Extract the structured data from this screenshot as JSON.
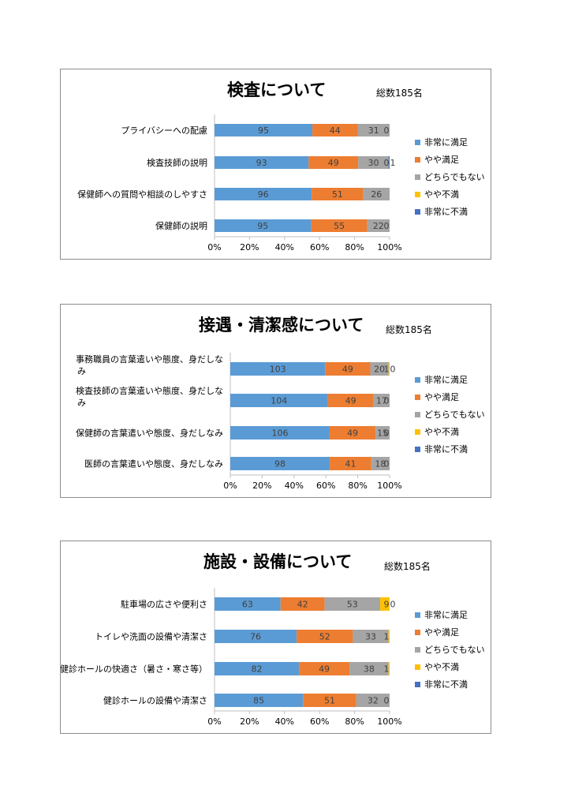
{
  "colors": {
    "very_satisfied": "#5b9bd5",
    "satisfied": "#ed7d31",
    "neutral": "#a5a5a5",
    "dissatisfied": "#ffc000",
    "very_dissatisfied": "#4472c4"
  },
  "legend": [
    "非常に満足",
    "やや満足",
    "どちらでもない",
    "やや不満",
    "非常に不満"
  ],
  "chart_data": [
    {
      "type": "bar",
      "orientation": "horizontal",
      "stacked": "percent",
      "title": "検査について",
      "total_label": "総数185名",
      "categories": [
        "プライバシーへの配慮",
        "検査技師の説明",
        "保健師への質問や相談のしやすさ",
        "保健師の説明"
      ],
      "series": [
        {
          "name": "非常に満足",
          "values": [
            95,
            93,
            96,
            95
          ]
        },
        {
          "name": "やや満足",
          "values": [
            44,
            49,
            51,
            55
          ]
        },
        {
          "name": "どちらでもない",
          "values": [
            31,
            30,
            26,
            22
          ]
        },
        {
          "name": "やや不満",
          "values": [
            0,
            0,
            0,
            0
          ]
        },
        {
          "name": "非常に不満",
          "values": [
            0,
            1,
            0,
            0
          ]
        }
      ],
      "data_labels": [
        [
          "95",
          "44",
          "31",
          "0",
          ""
        ],
        [
          "93",
          "49",
          "30",
          "0",
          "1"
        ],
        [
          "96",
          "51",
          "26",
          "",
          ""
        ],
        [
          "95",
          "55",
          "22",
          "0",
          ""
        ]
      ],
      "xticks": [
        "0%",
        "20%",
        "40%",
        "60%",
        "80%",
        "100%"
      ],
      "xlim": [
        0,
        100
      ],
      "legend_position": "right"
    },
    {
      "type": "bar",
      "orientation": "horizontal",
      "stacked": "percent",
      "title": "接遇・清潔感について",
      "total_label": "総数185名",
      "categories": [
        "事務職員の言葉遣いや態度、身だしなみ",
        "検査技師の言葉遣いや態度、身だしなみ",
        "保健師の言葉遣いや態度、身だしなみ",
        "医師の言葉遣いや態度、身だしなみ"
      ],
      "series": [
        {
          "name": "非常に満足",
          "values": [
            103,
            104,
            106,
            98
          ]
        },
        {
          "name": "やや満足",
          "values": [
            49,
            49,
            49,
            41
          ]
        },
        {
          "name": "どちらでもない",
          "values": [
            20,
            17,
            15,
            18
          ]
        },
        {
          "name": "やや不満",
          "values": [
            1,
            0,
            0,
            0
          ]
        },
        {
          "name": "非常に不満",
          "values": [
            0,
            0,
            0,
            0
          ]
        }
      ],
      "data_labels": [
        [
          "103",
          "49",
          "20",
          "1",
          "0"
        ],
        [
          "104",
          "49",
          "17",
          "0",
          ""
        ],
        [
          "106",
          "49",
          "15",
          "0",
          ""
        ],
        [
          "98",
          "41",
          "18",
          "0",
          ""
        ]
      ],
      "xticks": [
        "0%",
        "20%",
        "40%",
        "60%",
        "80%",
        "100%"
      ],
      "xlim": [
        0,
        100
      ],
      "legend_position": "right"
    },
    {
      "type": "bar",
      "orientation": "horizontal",
      "stacked": "percent",
      "title": "施設・設備について",
      "total_label": "総数185名",
      "categories": [
        "駐車場の広さや便利さ",
        "トイレや洗面の設備や清潔さ",
        "健診ホールの快適さ（暑さ・寒さ等）",
        "健診ホールの設備や清潔さ"
      ],
      "series": [
        {
          "name": "非常に満足",
          "values": [
            63,
            76,
            82,
            85
          ]
        },
        {
          "name": "やや満足",
          "values": [
            42,
            52,
            49,
            51
          ]
        },
        {
          "name": "どちらでもない",
          "values": [
            53,
            33,
            38,
            32
          ]
        },
        {
          "name": "やや不満",
          "values": [
            9,
            1,
            1,
            0
          ]
        },
        {
          "name": "非常に不満",
          "values": [
            0,
            0,
            0,
            0
          ]
        }
      ],
      "data_labels": [
        [
          "63",
          "42",
          "53",
          "9",
          "0"
        ],
        [
          "76",
          "52",
          "33",
          "1",
          ""
        ],
        [
          "82",
          "49",
          "38",
          "1",
          ""
        ],
        [
          "85",
          "51",
          "32",
          "0",
          ""
        ]
      ],
      "xticks": [
        "0%",
        "20%",
        "40%",
        "60%",
        "80%",
        "100%"
      ],
      "xlim": [
        0,
        100
      ],
      "legend_position": "right"
    }
  ]
}
